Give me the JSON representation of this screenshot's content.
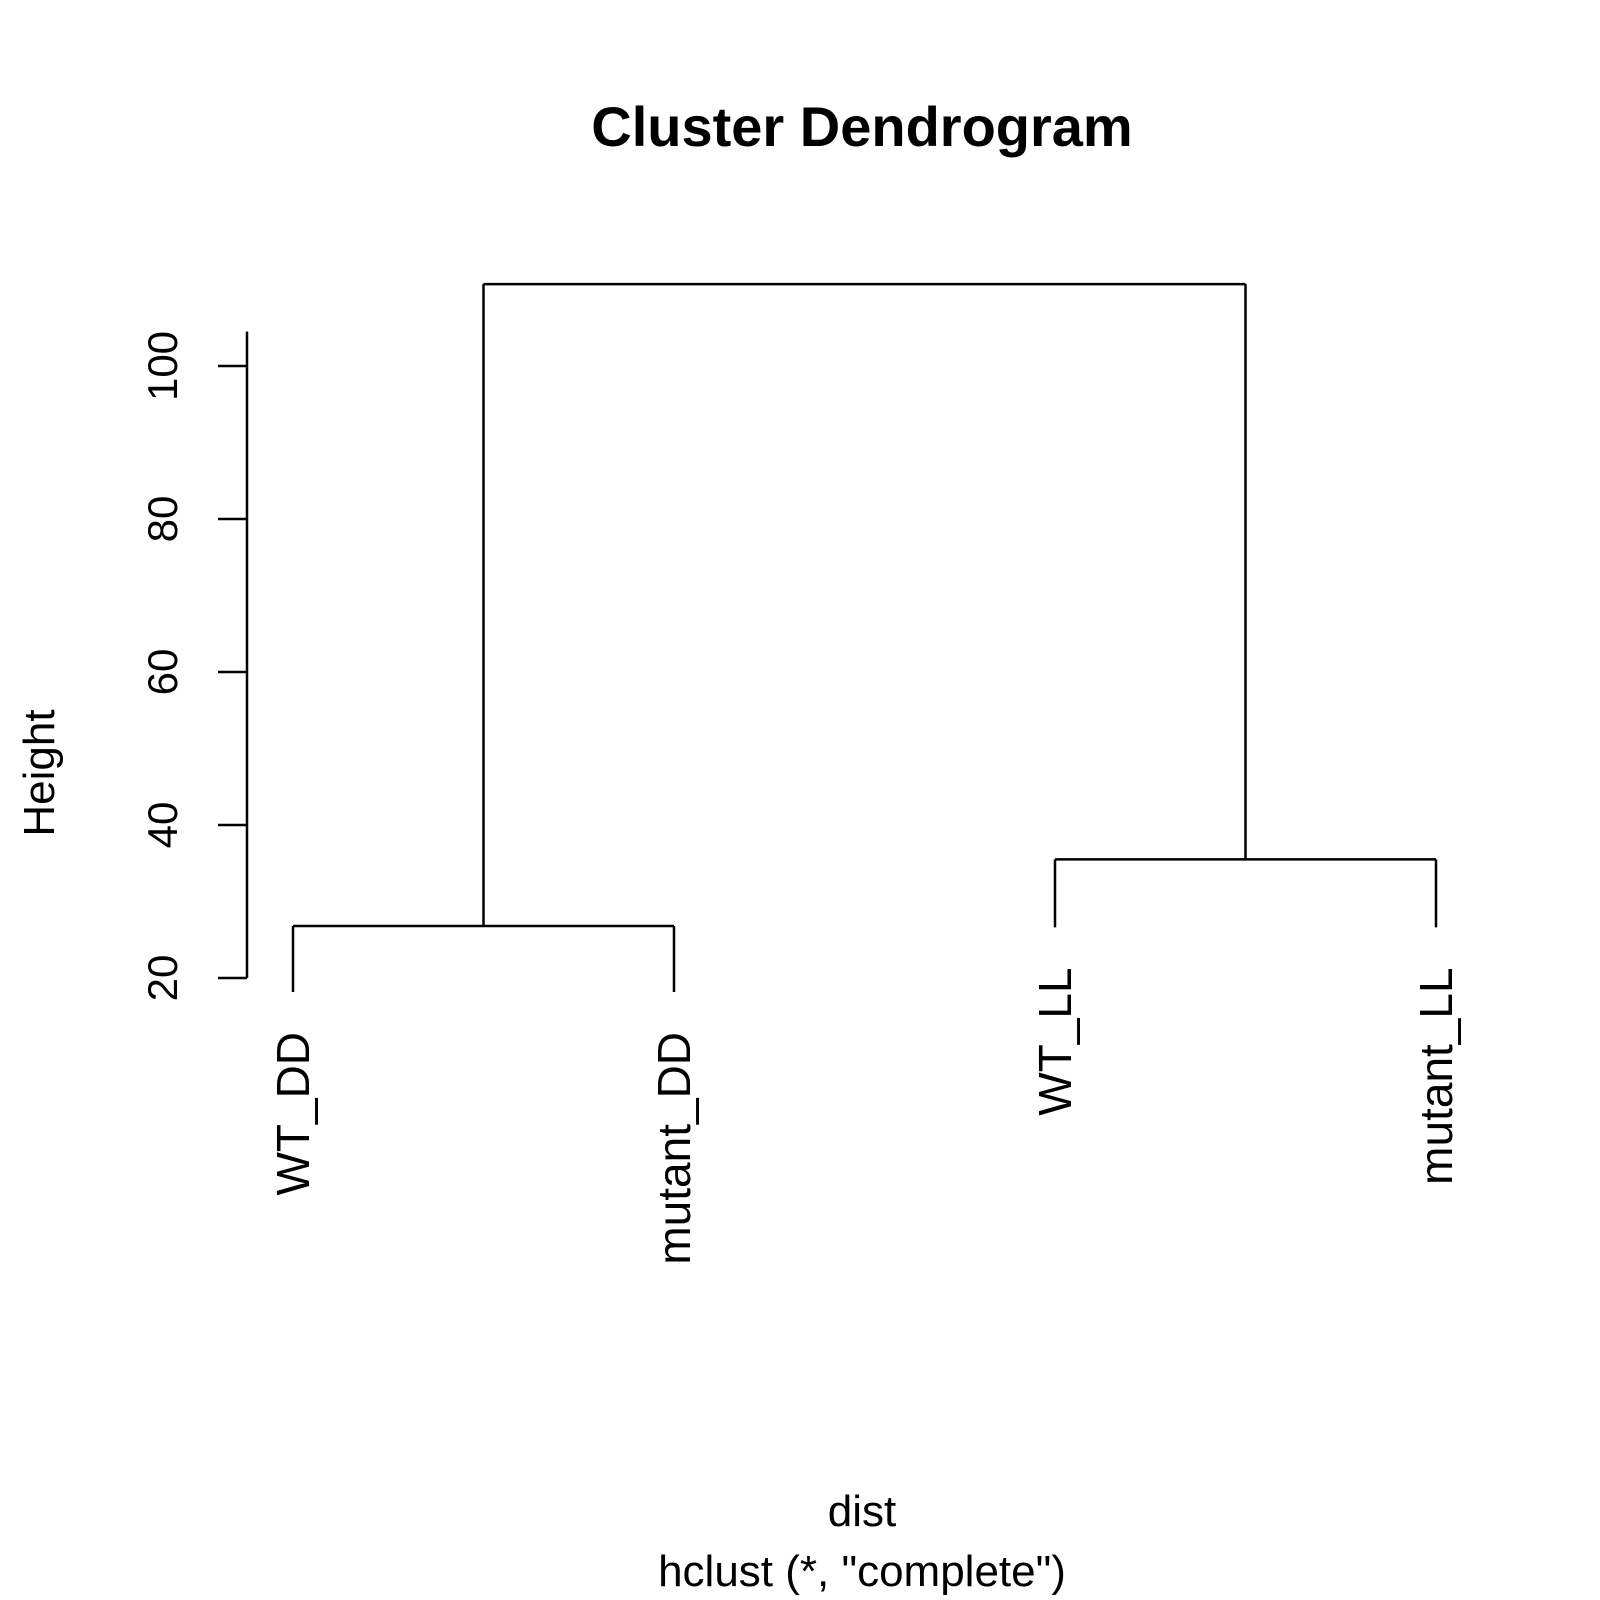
{
  "chart_data": {
    "type": "dendrogram",
    "title": "Cluster Dendrogram",
    "xlabel": "dist",
    "sub": "hclust (*, \"complete\")",
    "ylabel": "Height",
    "ylim": [
      20,
      112
    ],
    "yticks": [
      20,
      40,
      60,
      80,
      100
    ],
    "ytick_labels": [
      "20",
      "40",
      "60",
      "80",
      "100"
    ],
    "leaves": [
      {
        "label": "WT_DD"
      },
      {
        "label": "mutant_DD"
      },
      {
        "label": "WT_LL"
      },
      {
        "label": "mutant_LL"
      }
    ],
    "merges": [
      {
        "left": "leaf:0",
        "right": "leaf:1",
        "height": 26.8
      },
      {
        "left": "leaf:2",
        "right": "leaf:3",
        "height": 35.5
      },
      {
        "left": "node:0",
        "right": "node:1",
        "height": 110.7
      }
    ],
    "grid": false,
    "colors": {
      "line": "#000000",
      "text": "#000000",
      "background": "#ffffff"
    }
  }
}
